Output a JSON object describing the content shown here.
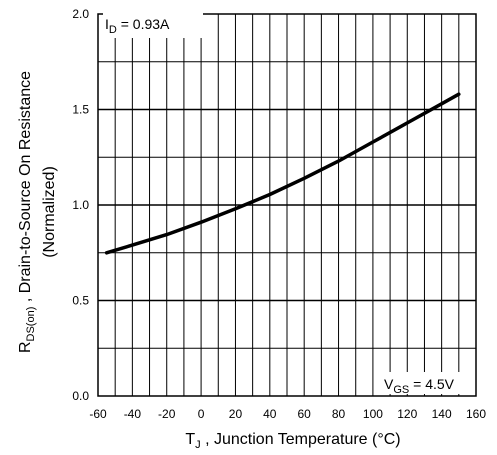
{
  "chart_data": {
    "type": "line",
    "title": "",
    "xlabel": {
      "main": "T",
      "sub": "J",
      "rest": " , Junction Temperature (°C)"
    },
    "ylabel": {
      "line1_main": "R",
      "line1_sub": "DS(on)",
      "line1_rest": " ,  Drain-to-Source On Resistance",
      "line2": "(Normalized)"
    },
    "xlim": [
      -60,
      160
    ],
    "ylim": [
      0.0,
      2.0
    ],
    "x_ticks": [
      "-60",
      "-40",
      "-20",
      "0",
      "20",
      "40",
      "60",
      "80",
      "100",
      "120",
      "140",
      "160"
    ],
    "y_ticks": [
      "0.0",
      "0.5",
      "1.0",
      "1.5",
      "2.0"
    ],
    "grid": true,
    "annotations": {
      "id": {
        "main": "I",
        "sub": "D",
        "rest": " = 0.93A"
      },
      "vgs": {
        "main": "V",
        "sub": "GS",
        "rest": " = 4.5V"
      }
    },
    "series": [
      {
        "x": [
          -55,
          -40,
          -20,
          0,
          20,
          40,
          60,
          80,
          100,
          120,
          140,
          150
        ],
        "values": [
          0.75,
          0.79,
          0.845,
          0.91,
          0.98,
          1.055,
          1.14,
          1.23,
          1.33,
          1.43,
          1.53,
          1.58
        ]
      }
    ]
  }
}
